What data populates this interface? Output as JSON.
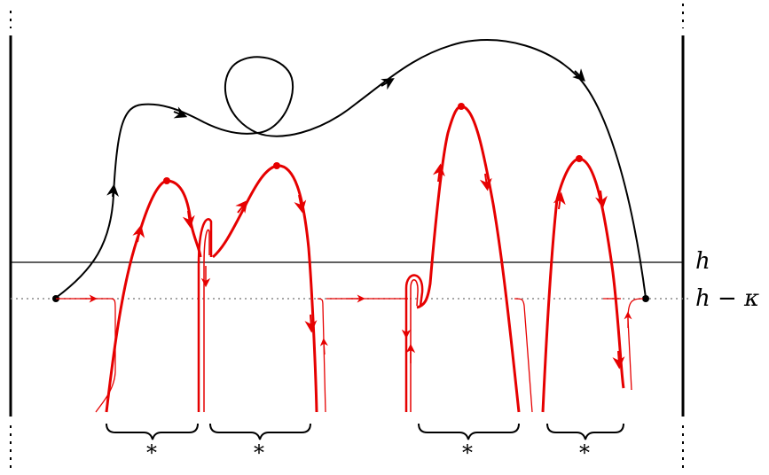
{
  "labels": {
    "h": "h",
    "h_minus_kappa": "h − κ",
    "stars": [
      "*",
      "*",
      "*",
      "*"
    ]
  },
  "colors": {
    "ink": "#000000",
    "red": "#e60000",
    "dotted_line": "#888888"
  }
}
